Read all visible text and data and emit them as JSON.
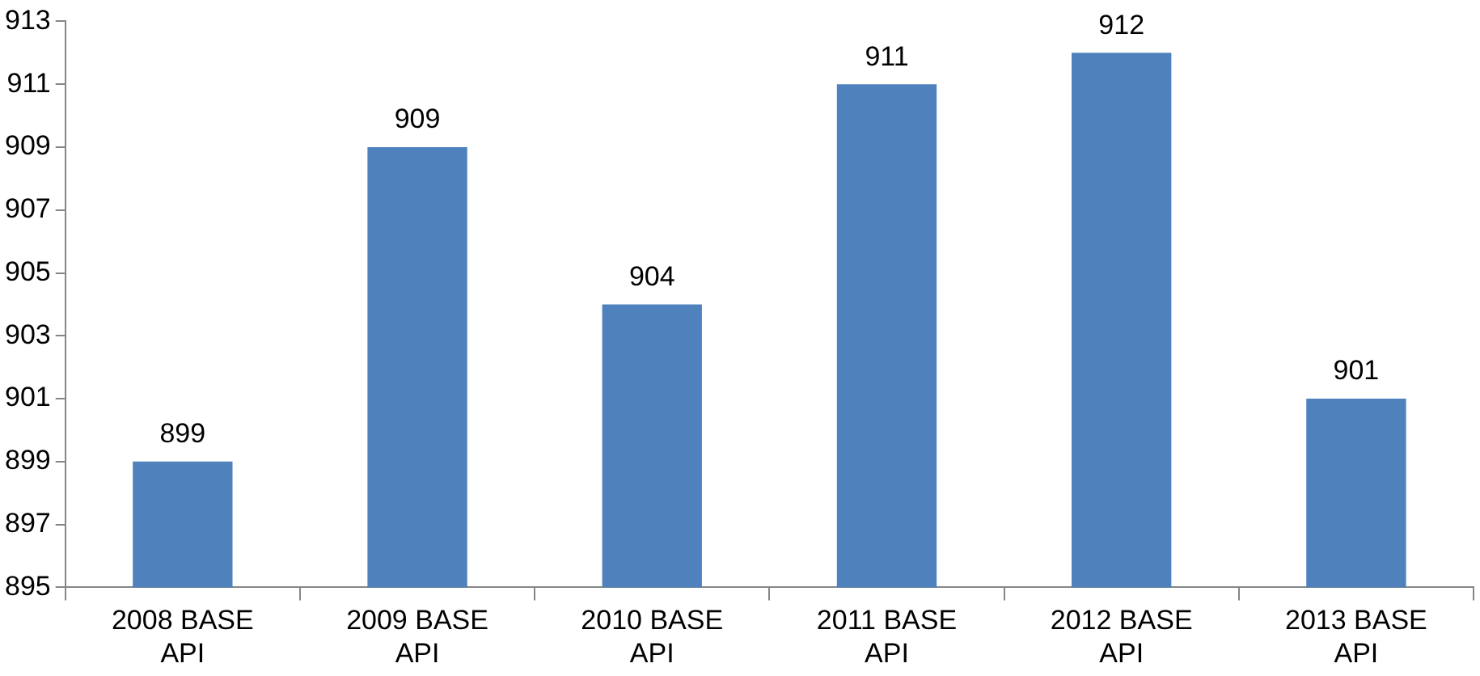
{
  "chart_data": {
    "type": "bar",
    "categories": [
      "2008 BASE API",
      "2009 BASE API",
      "2010 BASE API",
      "2011 BASE API",
      "2012 BASE API",
      "2013 BASE API"
    ],
    "values": [
      899,
      909,
      904,
      911,
      912,
      901
    ],
    "color": "#4f81bd",
    "ylim": [
      895,
      913
    ],
    "yticks": [
      895,
      897,
      899,
      901,
      903,
      905,
      907,
      909,
      911,
      913
    ],
    "grid": false,
    "data_labels": true
  }
}
